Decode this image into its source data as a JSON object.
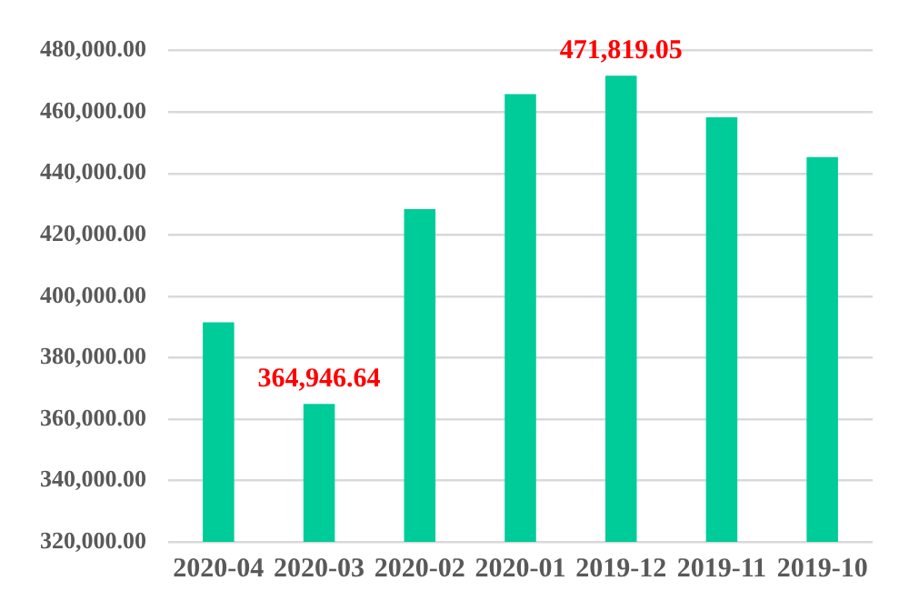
{
  "chart_data": {
    "type": "bar",
    "categories": [
      "2020-04",
      "2020-03",
      "2020-02",
      "2020-01",
      "2019-12",
      "2019-11",
      "2019-10"
    ],
    "values": [
      391500,
      364946.64,
      428400,
      465800,
      471819.05,
      458300,
      445300
    ],
    "value_labels": [
      null,
      "364,946.64",
      null,
      null,
      "471,819.05",
      null,
      null
    ],
    "color": "#00cc99",
    "ylim": [
      320000,
      480000
    ],
    "yticks": [
      {
        "value": 320000,
        "label": "320,000.00"
      },
      {
        "value": 340000,
        "label": "340,000.00"
      },
      {
        "value": 360000,
        "label": "360,000.00"
      },
      {
        "value": 380000,
        "label": "380,000.00"
      },
      {
        "value": 400000,
        "label": "400,000.00"
      },
      {
        "value": 420000,
        "label": "420,000.00"
      },
      {
        "value": 440000,
        "label": "440,000.00"
      },
      {
        "value": 460000,
        "label": "460,000.00"
      },
      {
        "value": 480000,
        "label": "480,000.00"
      }
    ],
    "grid": "y"
  }
}
